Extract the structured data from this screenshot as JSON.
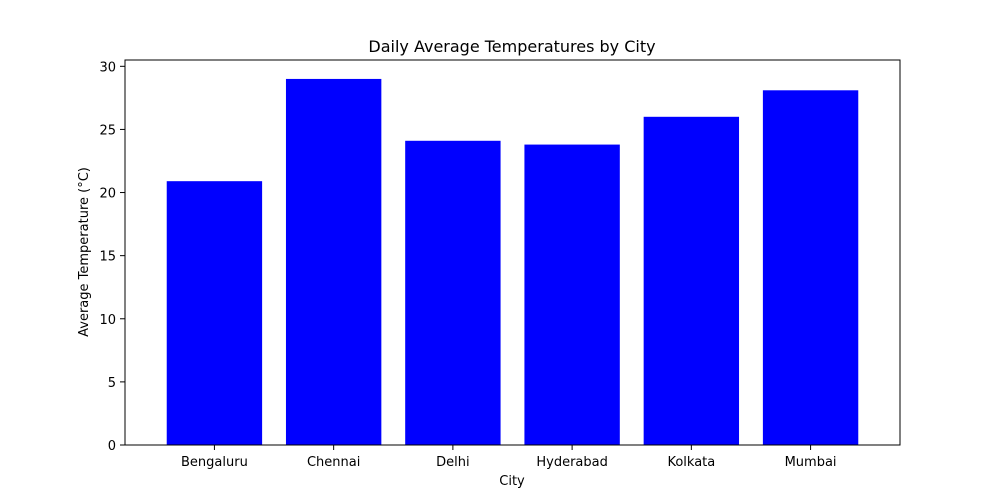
{
  "chart_data": {
    "type": "bar",
    "title": "Daily Average Temperatures by City",
    "xlabel": "City",
    "ylabel": "Average Temperature (°C)",
    "categories": [
      "Bengaluru",
      "Chennai",
      "Delhi",
      "Hyderabad",
      "Kolkata",
      "Mumbai"
    ],
    "values": [
      20.9,
      29.0,
      24.1,
      23.8,
      26.0,
      28.1
    ],
    "ylim": [
      0,
      30.5
    ],
    "yticks": [
      0,
      5,
      10,
      15,
      20,
      25,
      30
    ],
    "grid": false,
    "bar_color": "#0000ff"
  }
}
